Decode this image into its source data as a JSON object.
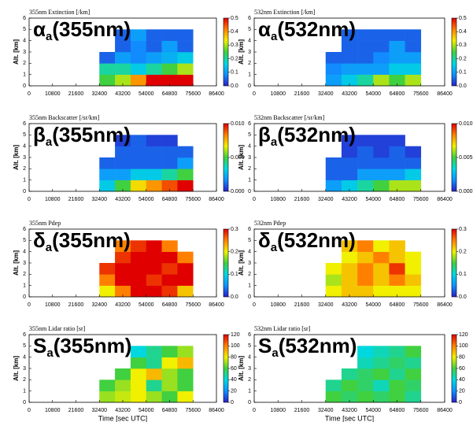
{
  "chart_data": [
    {
      "type": "heatmap",
      "title": "355nm Extinction [/km]",
      "label": "α",
      "label_sub": "a",
      "label_suffix": "(355nm)",
      "ylabel": "Alt. [km]",
      "xlim": [
        0,
        86400
      ],
      "xticks": [
        0,
        10800,
        21600,
        32400,
        43200,
        54000,
        64800,
        75600,
        86400
      ],
      "ylim": [
        0,
        6
      ],
      "yticks": [
        0,
        1,
        2,
        3,
        4,
        5,
        6
      ],
      "xbins": [
        32400,
        39600,
        46800,
        54000,
        61200,
        68400,
        75600
      ],
      "ybins": [
        0,
        1,
        2,
        3,
        4,
        5,
        6
      ],
      "values": [
        [
          0.25,
          0.3,
          0.4,
          0.5,
          0.5,
          0.5
        ],
        [
          0.2,
          0.2,
          0.15,
          0.2,
          0.25,
          0.3
        ],
        [
          0.05,
          0.1,
          0.08,
          0.1,
          0.12,
          0.15
        ],
        [
          null,
          0.05,
          0.08,
          0.05,
          0.1,
          0.05
        ],
        [
          null,
          0.05,
          0.1,
          0.05,
          0.05,
          0.05
        ],
        [
          null,
          null,
          null,
          null,
          null,
          null
        ]
      ],
      "clim": [
        0,
        0.5
      ],
      "cticks": [
        {
          "value": 0,
          "label": "0.0"
        },
        {
          "value": 0.1,
          "label": "0.1"
        },
        {
          "value": 0.2,
          "label": "0.2"
        },
        {
          "value": 0.3,
          "label": "0.3"
        },
        {
          "value": 0.4,
          "label": "0.4"
        },
        {
          "value": 0.5,
          "label": "0.5"
        }
      ],
      "colormap": [
        "#2a1fc8",
        "#1090ff",
        "#00d8e0",
        "#40d040",
        "#f0f000",
        "#ff8000",
        "#e00000"
      ]
    },
    {
      "type": "heatmap",
      "title": "532nm Extinction [/km]",
      "label": "α",
      "label_sub": "a",
      "label_suffix": "(532nm)",
      "ylabel": "Alt. [km]",
      "xlim": [
        0,
        86400
      ],
      "xticks": [
        0,
        10800,
        21600,
        32400,
        43200,
        54000,
        64800,
        75600,
        86400
      ],
      "ylim": [
        0,
        6
      ],
      "yticks": [
        0,
        1,
        2,
        3,
        4,
        5,
        6
      ],
      "xbins": [
        32400,
        39600,
        46800,
        54000,
        61200,
        68400,
        75600
      ],
      "ybins": [
        0,
        1,
        2,
        3,
        4,
        5,
        6
      ],
      "values": [
        [
          0.1,
          0.15,
          0.2,
          0.3,
          0.25,
          0.3
        ],
        [
          0.08,
          0.1,
          0.1,
          0.1,
          0.15,
          0.15
        ],
        [
          0.05,
          0.05,
          0.05,
          0.08,
          0.1,
          0.1
        ],
        [
          null,
          0.05,
          0.05,
          0.05,
          0.1,
          0.05
        ],
        [
          null,
          0.05,
          0.05,
          0.05,
          0.05,
          0.05
        ],
        [
          null,
          null,
          null,
          null,
          null,
          null
        ]
      ],
      "clim": [
        0,
        0.5
      ],
      "cticks": [
        {
          "value": 0,
          "label": "0.0"
        },
        {
          "value": 0.1,
          "label": "0.1"
        },
        {
          "value": 0.2,
          "label": "0.2"
        },
        {
          "value": 0.3,
          "label": "0.3"
        },
        {
          "value": 0.4,
          "label": "0.4"
        },
        {
          "value": 0.5,
          "label": "0.5"
        }
      ],
      "colormap": [
        "#2a1fc8",
        "#1090ff",
        "#00d8e0",
        "#40d040",
        "#f0f000",
        "#ff8000",
        "#e00000"
      ]
    },
    {
      "type": "heatmap",
      "title": "355nm Backscatter [/sr/km]",
      "label": "β",
      "label_sub": "a",
      "label_suffix": "(355nm)",
      "ylabel": "Alt. [km]",
      "xlim": [
        0,
        86400
      ],
      "xticks": [
        0,
        10800,
        21600,
        32400,
        43200,
        54000,
        64800,
        75600,
        86400
      ],
      "ylim": [
        0,
        6
      ],
      "yticks": [
        0,
        1,
        2,
        3,
        4,
        5,
        6
      ],
      "xbins": [
        32400,
        39600,
        46800,
        54000,
        61200,
        68400,
        75600
      ],
      "ybins": [
        0,
        1,
        2,
        3,
        4,
        5,
        6
      ],
      "values": [
        [
          0.003,
          0.005,
          0.007,
          0.008,
          0.009,
          0.01
        ],
        [
          0.002,
          0.002,
          0.003,
          0.003,
          0.004,
          0.005
        ],
        [
          0.001,
          0.001,
          0.001,
          0.001,
          0.001,
          0.002
        ],
        [
          null,
          0.001,
          0.001,
          0.001,
          0.001,
          0.001
        ],
        [
          null,
          0.0005,
          0.001,
          0.0005,
          0.0005,
          null
        ],
        [
          null,
          null,
          null,
          null,
          null,
          null
        ]
      ],
      "clim": [
        0,
        0.01
      ],
      "cticks": [
        {
          "value": 0,
          "label": "0.000"
        },
        {
          "value": 0.005,
          "label": "0.005"
        },
        {
          "value": 0.01,
          "label": "0.010"
        }
      ],
      "colormap": [
        "#2a1fc8",
        "#1090ff",
        "#00d8e0",
        "#40d040",
        "#f0f000",
        "#ff8000",
        "#e00000"
      ]
    },
    {
      "type": "heatmap",
      "title": "532nm Backscatter [/sr/km]",
      "label": "β",
      "label_sub": "a",
      "label_suffix": "(532nm)",
      "ylabel": "Alt. [km]",
      "xlim": [
        0,
        86400
      ],
      "xticks": [
        0,
        10800,
        21600,
        32400,
        43200,
        54000,
        64800,
        75600,
        86400
      ],
      "ylim": [
        0,
        6
      ],
      "yticks": [
        0,
        1,
        2,
        3,
        4,
        5,
        6
      ],
      "xbins": [
        32400,
        39600,
        46800,
        54000,
        61200,
        68400,
        75600
      ],
      "ybins": [
        0,
        1,
        2,
        3,
        4,
        5,
        6
      ],
      "values": [
        [
          0.002,
          0.003,
          0.004,
          0.005,
          0.006,
          0.006
        ],
        [
          0.001,
          0.001,
          0.002,
          0.002,
          0.002,
          0.003
        ],
        [
          0.001,
          0.001,
          0.001,
          0.001,
          0.001,
          0.001
        ],
        [
          null,
          0.0005,
          0.001,
          0.0005,
          0.001,
          0.0005
        ],
        [
          null,
          0.0005,
          0.0005,
          0.0005,
          0.0005,
          null
        ],
        [
          null,
          null,
          null,
          null,
          null,
          null
        ]
      ],
      "clim": [
        0,
        0.01
      ],
      "cticks": [
        {
          "value": 0,
          "label": "0.000"
        },
        {
          "value": 0.005,
          "label": "0.005"
        },
        {
          "value": 0.01,
          "label": "0.010"
        }
      ],
      "colormap": [
        "#2a1fc8",
        "#1090ff",
        "#00d8e0",
        "#40d040",
        "#f0f000",
        "#ff8000",
        "#e00000"
      ]
    },
    {
      "type": "heatmap",
      "title": "355nm Pdep",
      "label": "δ",
      "label_sub": "a",
      "label_suffix": "(355nm)",
      "ylabel": "Alt. [km]",
      "xlim": [
        0,
        86400
      ],
      "xticks": [
        0,
        10800,
        21600,
        32400,
        43200,
        54000,
        64800,
        75600,
        86400
      ],
      "ylim": [
        0,
        6
      ],
      "yticks": [
        0,
        1,
        2,
        3,
        4,
        5,
        6
      ],
      "xbins": [
        32400,
        39600,
        46800,
        54000,
        61200,
        68400,
        75600
      ],
      "ybins": [
        0,
        1,
        2,
        3,
        4,
        5,
        6
      ],
      "values": [
        [
          0.2,
          0.25,
          0.3,
          0.3,
          0.28,
          0.22
        ],
        [
          0.25,
          0.3,
          0.3,
          0.28,
          0.3,
          0.3
        ],
        [
          0.28,
          0.3,
          0.3,
          0.3,
          0.28,
          0.3
        ],
        [
          null,
          0.28,
          0.3,
          0.3,
          0.3,
          0.25
        ],
        [
          null,
          0.25,
          0.28,
          0.3,
          0.25,
          null
        ],
        [
          null,
          null,
          null,
          null,
          null,
          null
        ]
      ],
      "clim": [
        0,
        0.3
      ],
      "cticks": [
        {
          "value": 0,
          "label": "0.0"
        },
        {
          "value": 0.1,
          "label": "0.1"
        },
        {
          "value": 0.2,
          "label": "0.2"
        },
        {
          "value": 0.3,
          "label": "0.3"
        }
      ],
      "colormap": [
        "#2a1fc8",
        "#1090ff",
        "#00d8e0",
        "#40d040",
        "#f0f000",
        "#ff8000",
        "#e00000"
      ]
    },
    {
      "type": "heatmap",
      "title": "532nm Pdep",
      "label": "δ",
      "label_sub": "a",
      "label_suffix": "(532nm)",
      "ylabel": "Alt. [km]",
      "xlim": [
        0,
        86400
      ],
      "xticks": [
        0,
        10800,
        21600,
        32400,
        43200,
        54000,
        64800,
        75600,
        86400
      ],
      "ylim": [
        0,
        6
      ],
      "yticks": [
        0,
        1,
        2,
        3,
        4,
        5,
        6
      ],
      "xbins": [
        32400,
        39600,
        46800,
        54000,
        61200,
        68400,
        75600
      ],
      "ybins": [
        0,
        1,
        2,
        3,
        4,
        5,
        6
      ],
      "values": [
        [
          0.2,
          0.22,
          0.22,
          0.2,
          0.2,
          0.2
        ],
        [
          0.18,
          0.22,
          0.25,
          0.22,
          0.25,
          0.22
        ],
        [
          0.2,
          0.22,
          0.25,
          0.22,
          0.28,
          0.2
        ],
        [
          null,
          0.2,
          0.22,
          0.25,
          0.22,
          0.2
        ],
        [
          null,
          0.22,
          0.25,
          0.2,
          0.22,
          null
        ],
        [
          null,
          null,
          null,
          null,
          null,
          null
        ]
      ],
      "clim": [
        0,
        0.3
      ],
      "cticks": [
        {
          "value": 0,
          "label": "0.0"
        },
        {
          "value": 0.1,
          "label": "0.1"
        },
        {
          "value": 0.2,
          "label": "0.2"
        },
        {
          "value": 0.3,
          "label": "0.3"
        }
      ],
      "colormap": [
        "#2a1fc8",
        "#1090ff",
        "#00d8e0",
        "#40d040",
        "#f0f000",
        "#ff8000",
        "#e00000"
      ]
    },
    {
      "type": "heatmap",
      "title": "355nm Lidar ratio [sr]",
      "label": "S",
      "label_sub": "a",
      "label_suffix": "(355nm)",
      "ylabel": "Alt. [km]",
      "xlabel": "Time [sec UTC]",
      "xlim": [
        0,
        86400
      ],
      "xticks": [
        0,
        10800,
        21600,
        32400,
        43200,
        54000,
        64800,
        75600,
        86400
      ],
      "ylim": [
        0,
        6
      ],
      "yticks": [
        0,
        1,
        2,
        3,
        4,
        5,
        6
      ],
      "xbins": [
        32400,
        39600,
        46800,
        54000,
        61200,
        68400,
        75600
      ],
      "ybins": [
        0,
        1,
        2,
        3,
        4,
        5,
        6
      ],
      "values": [
        [
          70,
          75,
          80,
          70,
          60,
          80
        ],
        [
          60,
          70,
          80,
          50,
          70,
          60
        ],
        [
          null,
          60,
          80,
          90,
          70,
          60
        ],
        [
          null,
          null,
          60,
          50,
          80,
          90
        ],
        [
          null,
          null,
          40,
          50,
          60,
          70
        ],
        [
          null,
          null,
          null,
          null,
          null,
          null
        ]
      ],
      "clim": [
        0,
        120
      ],
      "cticks": [
        0,
        20,
        40,
        60,
        80,
        100,
        120
      ],
      "colormap": [
        "#2a1fc8",
        "#1090ff",
        "#00d8e0",
        "#40d040",
        "#f0f000",
        "#ff8000",
        "#e00000"
      ]
    },
    {
      "type": "heatmap",
      "title": "532nm Lidar ratio [sr]",
      "label": "S",
      "label_sub": "a",
      "label_suffix": "(532nm)",
      "ylabel": "Alt. [km]",
      "xlabel": "Time [sec UTC]",
      "xlim": [
        0,
        86400
      ],
      "xticks": [
        0,
        10800,
        21600,
        32400,
        43200,
        54000,
        64800,
        75600,
        86400
      ],
      "ylim": [
        0,
        6
      ],
      "yticks": [
        0,
        1,
        2,
        3,
        4,
        5,
        6
      ],
      "xbins": [
        32400,
        39600,
        46800,
        54000,
        61200,
        68400,
        75600
      ],
      "ybins": [
        0,
        1,
        2,
        3,
        4,
        5,
        6
      ],
      "values": [
        [
          60,
          55,
          60,
          55,
          60,
          50
        ],
        [
          50,
          60,
          55,
          45,
          60,
          55
        ],
        [
          null,
          50,
          55,
          60,
          50,
          60
        ],
        [
          null,
          null,
          45,
          50,
          55,
          50
        ],
        [
          null,
          null,
          40,
          45,
          50,
          60
        ],
        [
          null,
          null,
          null,
          null,
          null,
          null
        ]
      ],
      "clim": [
        0,
        120
      ],
      "cticks": [
        0,
        20,
        40,
        60,
        80,
        100,
        120
      ],
      "colormap": [
        "#2a1fc8",
        "#1090ff",
        "#00d8e0",
        "#40d040",
        "#f0f000",
        "#ff8000",
        "#e00000"
      ]
    }
  ]
}
